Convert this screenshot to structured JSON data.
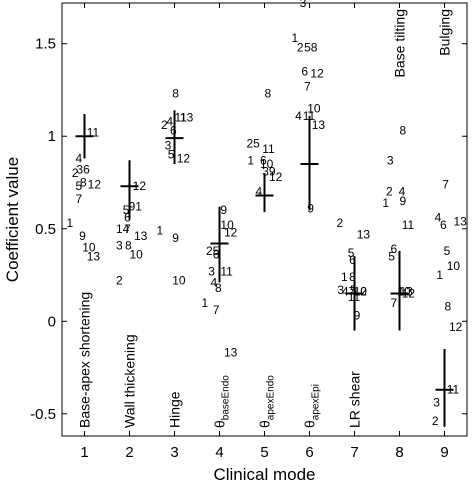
{
  "chart_data": {
    "type": "scatter",
    "xlabel": "Clinical mode",
    "ylabel": "Coefficient value",
    "xlim": [
      0.5,
      9.5
    ],
    "ylim": [
      -0.62,
      1.72
    ],
    "xticks": [
      "1",
      "2",
      "3",
      "4",
      "5",
      "6",
      "7",
      "8",
      "9"
    ],
    "yticks": [
      {
        "value": -0.5,
        "label": "-0.5"
      },
      {
        "value": 0,
        "label": "0"
      },
      {
        "value": 0.5,
        "label": "0.5"
      },
      {
        "value": 1,
        "label": "1"
      },
      {
        "value": 1.5,
        "label": "1.5"
      }
    ],
    "grid": false,
    "mode_labels": [
      {
        "mode": 1,
        "text": "Base-apex shortening",
        "sub": "",
        "anchor": "bottom"
      },
      {
        "mode": 2,
        "text": "Wall thickening",
        "sub": "",
        "anchor": "bottom"
      },
      {
        "mode": 3,
        "text": "Hinge",
        "sub": "",
        "anchor": "bottom"
      },
      {
        "mode": 4,
        "text": "θ",
        "sub": "baseEndo",
        "anchor": "bottom"
      },
      {
        "mode": 5,
        "text": "θ",
        "sub": "apexEndo",
        "anchor": "bottom"
      },
      {
        "mode": 6,
        "text": "θ",
        "sub": "apexEpi",
        "anchor": "bottom"
      },
      {
        "mode": 7,
        "text": "LR shear",
        "sub": "",
        "anchor": "bottom"
      },
      {
        "mode": 8,
        "text": "Base tilting",
        "sub": "",
        "anchor": "top"
      },
      {
        "mode": 9,
        "text": "Bulging",
        "sub": "",
        "anchor": "top"
      }
    ],
    "summary": [
      {
        "mode": 1,
        "mean": 1.0,
        "low": 0.88,
        "high": 1.12
      },
      {
        "mode": 2,
        "mean": 0.73,
        "low": 0.55,
        "high": 0.87
      },
      {
        "mode": 3,
        "mean": 0.99,
        "low": 0.85,
        "high": 1.14
      },
      {
        "mode": 4,
        "mean": 0.42,
        "low": 0.21,
        "high": 0.62
      },
      {
        "mode": 5,
        "mean": 0.68,
        "low": 0.59,
        "high": 0.8
      },
      {
        "mode": 6,
        "mean": 0.85,
        "low": 0.6,
        "high": 1.11
      },
      {
        "mode": 7,
        "mean": 0.15,
        "low": -0.05,
        "high": 0.35
      },
      {
        "mode": 8,
        "mean": 0.15,
        "low": -0.05,
        "high": 0.38
      },
      {
        "mode": 9,
        "mean": -0.37,
        "low": -0.57,
        "high": -0.15
      }
    ],
    "points": [
      {
        "mode": 1,
        "dx": 0.05,
        "label": "11",
        "value": 1.02
      },
      {
        "mode": 1,
        "dx": -0.2,
        "label": "4",
        "value": 0.88
      },
      {
        "mode": 1,
        "dx": -0.28,
        "label": "2",
        "value": 0.8
      },
      {
        "mode": 1,
        "dx": -0.18,
        "label": "36",
        "value": 0.82
      },
      {
        "mode": 1,
        "dx": -0.1,
        "label": "8",
        "value": 0.75
      },
      {
        "mode": 1,
        "dx": 0.07,
        "label": "12",
        "value": 0.74
      },
      {
        "mode": 1,
        "dx": -0.2,
        "label": "5",
        "value": 0.73
      },
      {
        "mode": 1,
        "dx": -0.2,
        "label": "7",
        "value": 0.66
      },
      {
        "mode": 1,
        "dx": -0.4,
        "label": "1",
        "value": 0.53
      },
      {
        "mode": 1,
        "dx": -0.12,
        "label": "9",
        "value": 0.46
      },
      {
        "mode": 1,
        "dx": -0.05,
        "label": "10",
        "value": 0.4
      },
      {
        "mode": 1,
        "dx": 0.05,
        "label": "13",
        "value": 0.35
      },
      {
        "mode": 2,
        "dx": 0.07,
        "label": "12",
        "value": 0.73
      },
      {
        "mode": 2,
        "dx": -0.15,
        "label": "5",
        "value": 0.6
      },
      {
        "mode": 2,
        "dx": -0.02,
        "label": "91",
        "value": 0.62
      },
      {
        "mode": 2,
        "dx": -0.12,
        "label": "6",
        "value": 0.56
      },
      {
        "mode": 2,
        "dx": -0.3,
        "label": "14",
        "value": 0.5
      },
      {
        "mode": 2,
        "dx": -0.12,
        "label": "7",
        "value": 0.5
      },
      {
        "mode": 2,
        "dx": 0.1,
        "label": "13",
        "value": 0.46
      },
      {
        "mode": 2,
        "dx": -0.3,
        "label": "3",
        "value": 0.41
      },
      {
        "mode": 2,
        "dx": -0.1,
        "label": "8",
        "value": 0.41
      },
      {
        "mode": 2,
        "dx": 0.0,
        "label": "10",
        "value": 0.36
      },
      {
        "mode": 2,
        "dx": -0.3,
        "label": "2",
        "value": 0.22
      },
      {
        "mode": 3,
        "dx": -0.05,
        "label": "8",
        "value": 1.23
      },
      {
        "mode": 3,
        "dx": 0.0,
        "label": "11",
        "value": 1.1
      },
      {
        "mode": 3,
        "dx": 0.12,
        "label": "13",
        "value": 1.1
      },
      {
        "mode": 3,
        "dx": -0.18,
        "label": "4",
        "value": 1.08
      },
      {
        "mode": 3,
        "dx": -0.3,
        "label": "2",
        "value": 1.06
      },
      {
        "mode": 3,
        "dx": -0.1,
        "label": "6",
        "value": 1.03
      },
      {
        "mode": 3,
        "dx": -0.22,
        "label": "3",
        "value": 0.95
      },
      {
        "mode": 3,
        "dx": -0.15,
        "label": "5",
        "value": 0.9
      },
      {
        "mode": 3,
        "dx": 0.05,
        "label": "12",
        "value": 0.88
      },
      {
        "mode": 3,
        "dx": -0.4,
        "label": "1",
        "value": 0.49
      },
      {
        "mode": 3,
        "dx": -0.05,
        "label": "9",
        "value": 0.45
      },
      {
        "mode": 3,
        "dx": -0.05,
        "label": "10",
        "value": 0.22
      },
      {
        "mode": 4,
        "dx": 0.02,
        "label": "9",
        "value": 0.6
      },
      {
        "mode": 4,
        "dx": 0.02,
        "label": "10",
        "value": 0.52
      },
      {
        "mode": 4,
        "dx": 0.1,
        "label": "12",
        "value": 0.48
      },
      {
        "mode": 4,
        "dx": -0.3,
        "label": "25",
        "value": 0.38
      },
      {
        "mode": 4,
        "dx": -0.15,
        "label": "6",
        "value": 0.36
      },
      {
        "mode": 4,
        "dx": -0.25,
        "label": "3",
        "value": 0.27
      },
      {
        "mode": 4,
        "dx": 0.02,
        "label": "11",
        "value": 0.27
      },
      {
        "mode": 4,
        "dx": -0.2,
        "label": "4",
        "value": 0.21
      },
      {
        "mode": 4,
        "dx": -0.1,
        "label": "8",
        "value": 0.18
      },
      {
        "mode": 4,
        "dx": -0.4,
        "label": "1",
        "value": 0.1
      },
      {
        "mode": 4,
        "dx": -0.15,
        "label": "7",
        "value": 0.06
      },
      {
        "mode": 4,
        "dx": 0.1,
        "label": "13",
        "value": -0.17
      },
      {
        "mode": 5,
        "dx": 0.0,
        "label": "8",
        "value": 1.23
      },
      {
        "mode": 5,
        "dx": -0.4,
        "label": "25",
        "value": 0.96
      },
      {
        "mode": 5,
        "dx": -0.05,
        "label": "11",
        "value": 0.93
      },
      {
        "mode": 5,
        "dx": -0.38,
        "label": "1",
        "value": 0.87
      },
      {
        "mode": 5,
        "dx": -0.1,
        "label": "6",
        "value": 0.87
      },
      {
        "mode": 5,
        "dx": -0.1,
        "label": "10",
        "value": 0.85
      },
      {
        "mode": 5,
        "dx": -0.05,
        "label": "39",
        "value": 0.81
      },
      {
        "mode": 5,
        "dx": 0.1,
        "label": "12",
        "value": 0.78
      },
      {
        "mode": 5,
        "dx": -0.2,
        "label": "4",
        "value": 0.7
      },
      {
        "mode": 6,
        "dx": -0.22,
        "label": "3",
        "value": 1.72
      },
      {
        "mode": 6,
        "dx": -0.4,
        "label": "1",
        "value": 1.53
      },
      {
        "mode": 6,
        "dx": -0.28,
        "label": "2",
        "value": 1.48
      },
      {
        "mode": 6,
        "dx": -0.12,
        "label": "58",
        "value": 1.48
      },
      {
        "mode": 6,
        "dx": -0.18,
        "label": "6",
        "value": 1.35
      },
      {
        "mode": 6,
        "dx": 0.02,
        "label": "12",
        "value": 1.34
      },
      {
        "mode": 6,
        "dx": -0.12,
        "label": "7",
        "value": 1.27
      },
      {
        "mode": 6,
        "dx": -0.05,
        "label": "10",
        "value": 1.15
      },
      {
        "mode": 6,
        "dx": -0.32,
        "label": "4",
        "value": 1.11
      },
      {
        "mode": 6,
        "dx": -0.15,
        "label": "11",
        "value": 1.11
      },
      {
        "mode": 6,
        "dx": 0.05,
        "label": "13",
        "value": 1.06
      },
      {
        "mode": 6,
        "dx": -0.05,
        "label": "9",
        "value": 0.61
      },
      {
        "mode": 7,
        "dx": -0.4,
        "label": "2",
        "value": 0.53
      },
      {
        "mode": 7,
        "dx": 0.05,
        "label": "13",
        "value": 0.47
      },
      {
        "mode": 7,
        "dx": -0.15,
        "label": "5",
        "value": 0.37
      },
      {
        "mode": 7,
        "dx": -0.12,
        "label": "6",
        "value": 0.33
      },
      {
        "mode": 7,
        "dx": -0.12,
        "label": "8",
        "value": 0.24
      },
      {
        "mode": 7,
        "dx": -0.3,
        "label": "1",
        "value": 0.24
      },
      {
        "mode": 7,
        "dx": -0.38,
        "label": "3",
        "value": 0.17
      },
      {
        "mode": 7,
        "dx": -0.28,
        "label": "47",
        "value": 0.16
      },
      {
        "mode": 7,
        "dx": -0.1,
        "label": "5",
        "value": 0.17
      },
      {
        "mode": 7,
        "dx": -0.02,
        "label": "10",
        "value": 0.16
      },
      {
        "mode": 7,
        "dx": -0.02,
        "label": "12",
        "value": 0.16
      },
      {
        "mode": 7,
        "dx": -0.15,
        "label": "11",
        "value": 0.13
      },
      {
        "mode": 7,
        "dx": -0.02,
        "label": "9",
        "value": 0.03
      },
      {
        "mode": 8,
        "dx": 0.0,
        "label": "8",
        "value": 1.03
      },
      {
        "mode": 8,
        "dx": -0.28,
        "label": "3",
        "value": 0.87
      },
      {
        "mode": 8,
        "dx": -0.3,
        "label": "2",
        "value": 0.7
      },
      {
        "mode": 8,
        "dx": -0.02,
        "label": "4",
        "value": 0.7
      },
      {
        "mode": 8,
        "dx": -0.38,
        "label": "1",
        "value": 0.64
      },
      {
        "mode": 8,
        "dx": 0.0,
        "label": "9",
        "value": 0.65
      },
      {
        "mode": 8,
        "dx": 0.05,
        "label": "11",
        "value": 0.52
      },
      {
        "mode": 8,
        "dx": -0.2,
        "label": "6",
        "value": 0.39
      },
      {
        "mode": 8,
        "dx": -0.25,
        "label": "5",
        "value": 0.35
      },
      {
        "mode": 8,
        "dx": -0.05,
        "label": "10",
        "value": 0.16
      },
      {
        "mode": 8,
        "dx": 0.0,
        "label": "13",
        "value": 0.16
      },
      {
        "mode": 8,
        "dx": 0.05,
        "label": "12",
        "value": 0.15
      },
      {
        "mode": 8,
        "dx": -0.2,
        "label": "7",
        "value": 0.1
      },
      {
        "mode": 9,
        "dx": -0.05,
        "label": "7",
        "value": 0.74
      },
      {
        "mode": 9,
        "dx": -0.22,
        "label": "4",
        "value": 0.56
      },
      {
        "mode": 9,
        "dx": -0.1,
        "label": "6",
        "value": 0.52
      },
      {
        "mode": 9,
        "dx": 0.2,
        "label": "13",
        "value": 0.54
      },
      {
        "mode": 9,
        "dx": -0.02,
        "label": "5",
        "value": 0.38
      },
      {
        "mode": 9,
        "dx": 0.05,
        "label": "10",
        "value": 0.3
      },
      {
        "mode": 9,
        "dx": -0.18,
        "label": "1",
        "value": 0.25
      },
      {
        "mode": 9,
        "dx": 0.0,
        "label": "8",
        "value": 0.08
      },
      {
        "mode": 9,
        "dx": 0.1,
        "label": "12",
        "value": -0.03
      },
      {
        "mode": 9,
        "dx": 0.05,
        "label": "11",
        "value": -0.37
      },
      {
        "mode": 9,
        "dx": -0.25,
        "label": "3",
        "value": -0.44
      },
      {
        "mode": 9,
        "dx": -0.28,
        "label": "2",
        "value": -0.54
      }
    ]
  }
}
